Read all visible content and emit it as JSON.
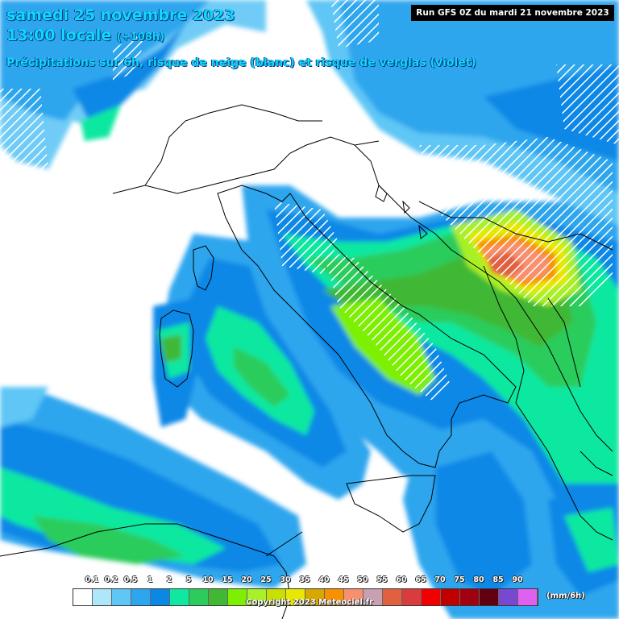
{
  "header": {
    "date_line": "samedi 25 novembre 2023",
    "time_main": "13:00 locale",
    "time_lead": "(+108h)",
    "subtitle": "Précipitations sur 6h, risque de neige (blanc) et risque de verglas (violet)"
  },
  "run_info": "Run GFS 0Z du mardi 21 novembre 2023",
  "legend": {
    "unit": "(mm/6h)",
    "ticks": [
      "0.1",
      "0.2",
      "0.5",
      "1",
      "2",
      "5",
      "10",
      "15",
      "20",
      "25",
      "30",
      "35",
      "40",
      "45",
      "50",
      "55",
      "60",
      "65",
      "70",
      "75",
      "80",
      "85",
      "90"
    ],
    "colors": [
      "#ffffff",
      "#aee6fa",
      "#5fc6f5",
      "#2ea6ee",
      "#0a88e6",
      "#0ee8a0",
      "#2ccc5c",
      "#40b834",
      "#7cf000",
      "#a8f028",
      "#c8e000",
      "#e8e800",
      "#d8a800",
      "#f89000",
      "#f89070",
      "#c8a0b0",
      "#e06040",
      "#d83c3c",
      "#f00000",
      "#c00000",
      "#a00010",
      "#600010",
      "#7848d0",
      "#e060f0"
    ]
  },
  "copyright": "Copyright 2023 Meteociel.fr"
}
